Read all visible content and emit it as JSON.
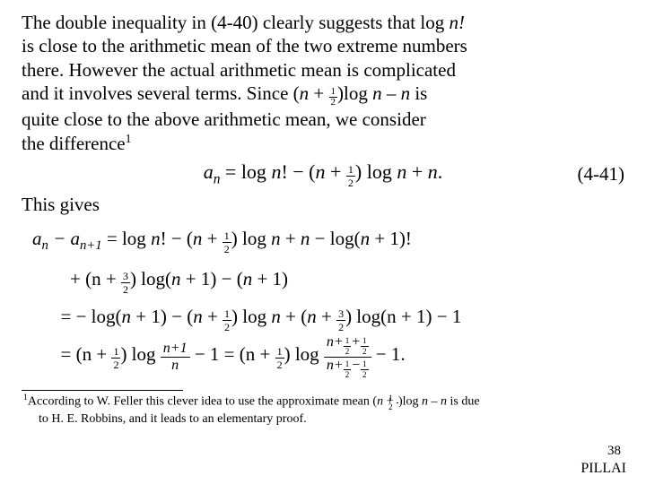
{
  "para": {
    "l1": "The double inequality in (4-40) clearly suggests that log ",
    "nfact": "n!",
    "l2": "is close to the arithmetic mean of the two extreme numbers",
    "l3": "there. However the actual arithmetic mean is complicated",
    "l4a": "and it involves several terms. Since (",
    "nv": "n",
    "plus": " + ",
    "half_top": "1",
    "half_bot": "2",
    "l4b": ")log ",
    "nminus": "n – n",
    "l4c": " is",
    "l5": "quite close to the above arithmetic mean, we consider",
    "l6": "the difference",
    "sup1": "1"
  },
  "eq441": {
    "lhs_a": "a",
    "lhs_n": "n",
    "eq": " = ",
    "p1a": "log ",
    "p1b": "n",
    "p1c": "! − (",
    "p1d": "n",
    "p1e": " + ",
    "p1f": ") log ",
    "p1g": "n",
    "p1h": " + ",
    "p1i": "n",
    "p1j": ".",
    "num": "(4-41)"
  },
  "thisgives": "This gives",
  "deriv": {
    "l1a": "a",
    "l1b": "n",
    "l1c": " − a",
    "l1d": "n+1",
    "l1e": " = log n! − (n + ",
    "l1f": ") log n + n − log(n + 1)!",
    "l2a": "+ (n + ",
    "three": "3",
    "two": "2",
    "l2b": ") log(n + 1) − (n + 1)",
    "l3a": "= − log(n + 1) − (n + ",
    "l3b": ") log n + (n + ",
    "l3c": ") log(n + 1) − 1",
    "l4a": "= (n + ",
    "l4b": ") log ",
    "fr1n": "n+1",
    "fr1d": "n",
    "l4c": " − 1 = (n + ",
    "l4d": ") log ",
    "fr2n_a": "n+",
    "fr2n_b": "+",
    "fr2d_a": "n+",
    "fr2d_b": "−",
    "l4e": " − 1.",
    "one": "1",
    "half": "2"
  },
  "footnote": {
    "sup": "1",
    "t1": "According to W. Feller this clever idea to use the approximate mean (",
    "nv": "n",
    "plus": " + ",
    "t2": ")log ",
    "nmn": "n – n",
    "t3": " is due",
    "t4": "to H. E. Robbins, and it leads to an elementary proof."
  },
  "pagenum": "38",
  "pillai": "PILLAI"
}
